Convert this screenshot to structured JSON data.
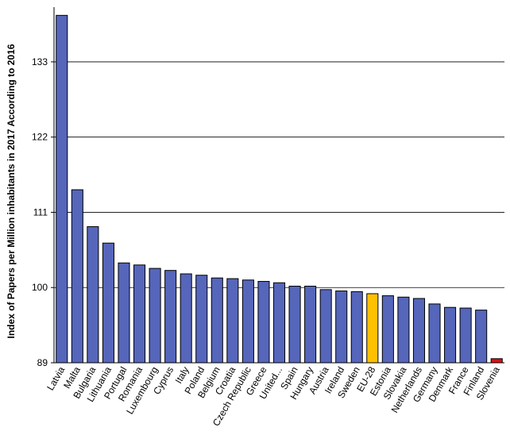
{
  "chart_data": {
    "type": "bar",
    "title": "",
    "xlabel": "",
    "ylabel": "Index of Papers per Million inhabitants in 2017  According to 2016",
    "ylim": [
      89,
      141
    ],
    "yticks": [
      89,
      100,
      111,
      122,
      133
    ],
    "grid": true,
    "legend": "none",
    "categories": [
      "Latvia",
      "Malta",
      "Bulgaria",
      "Lithuania",
      "Portugal",
      "Romania",
      "Luxembourg",
      "Cyprus",
      "Italy",
      "Poland",
      "Belgium",
      "Croatia",
      "Czech Republic",
      "Greece",
      "United...",
      "Spain",
      "Hungary",
      "Austria",
      "Ireland",
      "Sweden",
      "EU-28",
      "Estonia",
      "Slovakia",
      "Netherlands",
      "Germany",
      "Denmark",
      "France",
      "Finland",
      "Slovenia"
    ],
    "values": [
      139.8,
      114.3,
      108.9,
      106.5,
      103.6,
      103.3,
      102.8,
      102.5,
      102.0,
      101.8,
      101.4,
      101.3,
      101.1,
      100.9,
      100.7,
      100.2,
      100.2,
      99.7,
      99.5,
      99.4,
      99.1,
      98.8,
      98.6,
      98.4,
      97.6,
      97.1,
      97.0,
      96.7,
      89.6
    ],
    "bar_colors": [
      "#5566bb",
      "#5566bb",
      "#5566bb",
      "#5566bb",
      "#5566bb",
      "#5566bb",
      "#5566bb",
      "#5566bb",
      "#5566bb",
      "#5566bb",
      "#5566bb",
      "#5566bb",
      "#5566bb",
      "#5566bb",
      "#5566bb",
      "#5566bb",
      "#5566bb",
      "#5566bb",
      "#5566bb",
      "#5566bb",
      "#ffc000",
      "#5566bb",
      "#5566bb",
      "#5566bb",
      "#5566bb",
      "#5566bb",
      "#5566bb",
      "#5566bb",
      "#dd1111"
    ]
  }
}
